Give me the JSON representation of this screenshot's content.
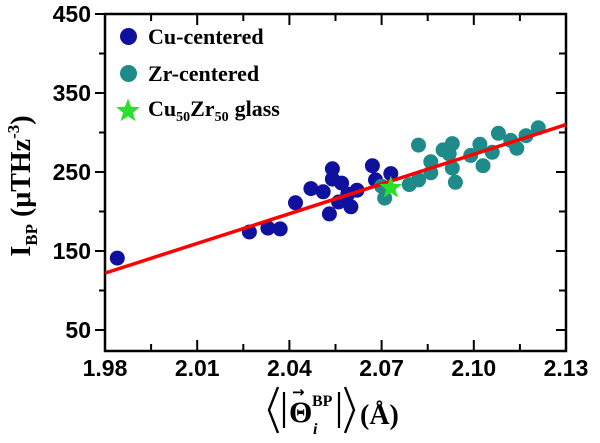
{
  "chart_data": {
    "type": "scatter",
    "title": "",
    "xlabel": "⟨|Θ⃗_i^BP|⟩ (Å)",
    "ylabel": "I_BP (μTHz^-3)",
    "xlim": [
      1.98,
      2.13
    ],
    "ylim": [
      25,
      450
    ],
    "grid": false,
    "legend_position": "top-left",
    "x_ticks": {
      "major": [
        1.98,
        2.01,
        2.04,
        2.07,
        2.1,
        2.13
      ],
      "labels": [
        "1.98",
        "2.01",
        "2.04",
        "2.07",
        "2.10",
        "2.13"
      ],
      "minor": [
        1.995,
        2.025,
        2.055,
        2.085,
        2.115
      ]
    },
    "y_ticks": {
      "major": [
        450,
        350,
        250,
        150,
        50
      ],
      "labels": [
        "450",
        "350",
        "250",
        "150",
        "50"
      ],
      "minor": [
        400,
        300,
        200,
        100
      ]
    },
    "series": [
      {
        "name": "Cu-centered",
        "marker": "circle",
        "color": "#10109e",
        "points": [
          [
            1.984,
            141
          ],
          [
            2.027,
            174
          ],
          [
            2.033,
            179
          ],
          [
            2.037,
            178
          ],
          [
            2.042,
            211
          ],
          [
            2.047,
            229
          ],
          [
            2.051,
            225
          ],
          [
            2.053,
            197
          ],
          [
            2.054,
            241
          ],
          [
            2.054,
            254
          ],
          [
            2.056,
            212
          ],
          [
            2.057,
            236
          ],
          [
            2.059,
            222
          ],
          [
            2.06,
            206
          ],
          [
            2.062,
            227
          ],
          [
            2.067,
            258
          ],
          [
            2.068,
            240
          ],
          [
            2.073,
            248
          ]
        ]
      },
      {
        "name": "Zr-centered",
        "marker": "circle",
        "color": "#1f8a8a",
        "points": [
          [
            2.07,
            232
          ],
          [
            2.071,
            217
          ],
          [
            2.079,
            234
          ],
          [
            2.082,
            284
          ],
          [
            2.082,
            240
          ],
          [
            2.086,
            263
          ],
          [
            2.086,
            249
          ],
          [
            2.09,
            278
          ],
          [
            2.092,
            273
          ],
          [
            2.093,
            286
          ],
          [
            2.093,
            255
          ],
          [
            2.094,
            237
          ],
          [
            2.099,
            271
          ],
          [
            2.102,
            285
          ],
          [
            2.103,
            258
          ],
          [
            2.106,
            275
          ],
          [
            2.108,
            299
          ],
          [
            2.112,
            290
          ],
          [
            2.114,
            280
          ],
          [
            2.117,
            296
          ],
          [
            2.121,
            306
          ]
        ]
      },
      {
        "name": "Cu50Zr50 glass",
        "marker": "star",
        "color": "#2ae02a",
        "points": [
          [
            2.073,
            230
          ]
        ]
      }
    ],
    "fit_line": {
      "color": "#ff0000",
      "from": [
        1.98,
        122
      ],
      "to": [
        2.13,
        310
      ]
    }
  },
  "axis_titles": {
    "y": {
      "symbol": "I",
      "subscript": "BP",
      "unit_prefix": " (μTHz",
      "exponent": "-3",
      "unit_suffix": ")"
    },
    "x": {
      "left_angle": "⟨",
      "left_bar": "|",
      "symbol": "Θ",
      "arrow": "→",
      "superscript": "BP",
      "subscript": "i",
      "right_bar": "|",
      "right_angle": "⟩",
      "unit": "(Å)"
    }
  },
  "legend": {
    "items": [
      "Cu-centered",
      "Zr-centered",
      "Cu50Zr50 glass"
    ],
    "glass_label": {
      "base1": "Cu",
      "sub1": "50",
      "base2": "Zr",
      "sub2": "50",
      "suffix": "glass"
    }
  }
}
